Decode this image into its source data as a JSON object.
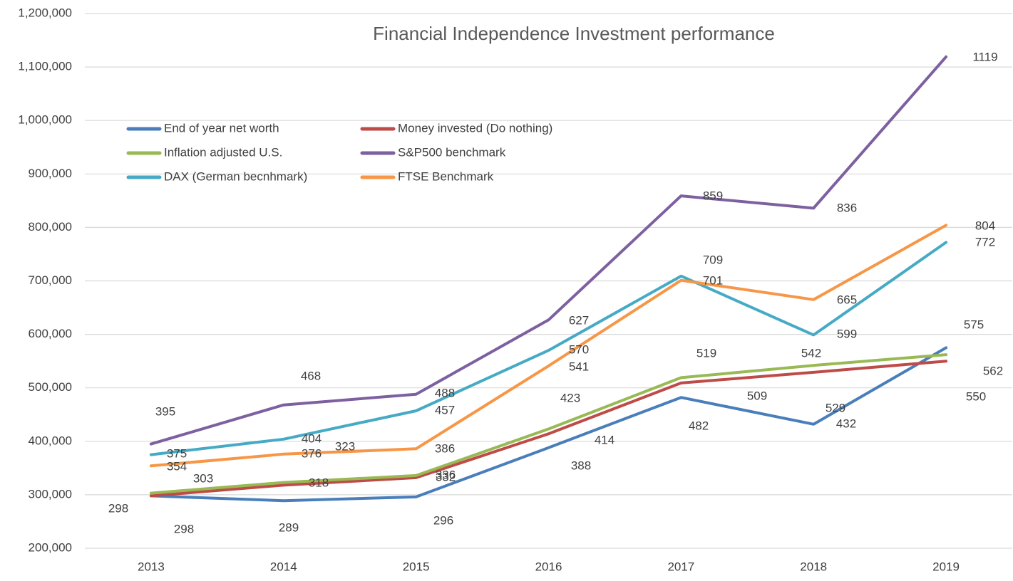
{
  "chart_data": {
    "type": "line",
    "title": "Financial Independence Investment performance",
    "categories": [
      "2013",
      "2014",
      "2015",
      "2016",
      "2017",
      "2018",
      "2019"
    ],
    "series": [
      {
        "name": "End of year net worth",
        "color": "#4a7ebb",
        "values": [
          298000,
          289000,
          296000,
          388000,
          482000,
          432000,
          575000
        ],
        "value_labels": [
          "298",
          "289",
          "296",
          "388",
          "482",
          "432",
          "575"
        ]
      },
      {
        "name": "Money invested (Do nothing)",
        "color": "#be4b48",
        "values": [
          298000,
          318000,
          332000,
          414000,
          509000,
          529000,
          550000
        ],
        "value_labels": [
          "298",
          "318",
          "332",
          "414",
          "509",
          "529",
          "550"
        ]
      },
      {
        "name": "Inflation adjusted U.S.",
        "color": "#98b954",
        "values": [
          303000,
          323000,
          336000,
          423000,
          519000,
          542000,
          562000
        ],
        "value_labels": [
          "303",
          "323",
          "336",
          "423",
          "519",
          "542",
          "562"
        ]
      },
      {
        "name": "S&P500 benchmark",
        "color": "#7d60a0",
        "values": [
          395000,
          468000,
          488000,
          627000,
          859000,
          836000,
          1119000
        ],
        "value_labels": [
          "395",
          "468",
          "488",
          "627",
          "859",
          "836",
          "1119"
        ]
      },
      {
        "name": "DAX (German becnhmark)",
        "color": "#46aac5",
        "values": [
          375000,
          404000,
          457000,
          570000,
          709000,
          599000,
          772000
        ],
        "value_labels": [
          "375",
          "404",
          "457",
          "570",
          "709",
          "599",
          "772"
        ]
      },
      {
        "name": "FTSE Benchmark",
        "color": "#f79646",
        "values": [
          354000,
          376000,
          386000,
          541000,
          701000,
          665000,
          804000
        ],
        "value_labels": [
          "354",
          "376",
          "386",
          "541",
          "701",
          "665",
          "804"
        ]
      }
    ],
    "ylim": [
      200000,
      1200000
    ],
    "yticks": [
      {
        "value": 200000,
        "label": "200,000"
      },
      {
        "value": 300000,
        "label": "300,000"
      },
      {
        "value": 400000,
        "label": "400,000"
      },
      {
        "value": 500000,
        "label": "500,000"
      },
      {
        "value": 600000,
        "label": "600,000"
      },
      {
        "value": 700000,
        "label": "700,000"
      },
      {
        "value": 800000,
        "label": "800,000"
      },
      {
        "value": 900000,
        "label": "900,000"
      },
      {
        "value": 1000000,
        "label": "1,000,000"
      },
      {
        "value": 1100000,
        "label": "1,100,000"
      },
      {
        "value": 1200000,
        "label": "1,200,000"
      }
    ],
    "grid": true,
    "legend": "top-left"
  }
}
